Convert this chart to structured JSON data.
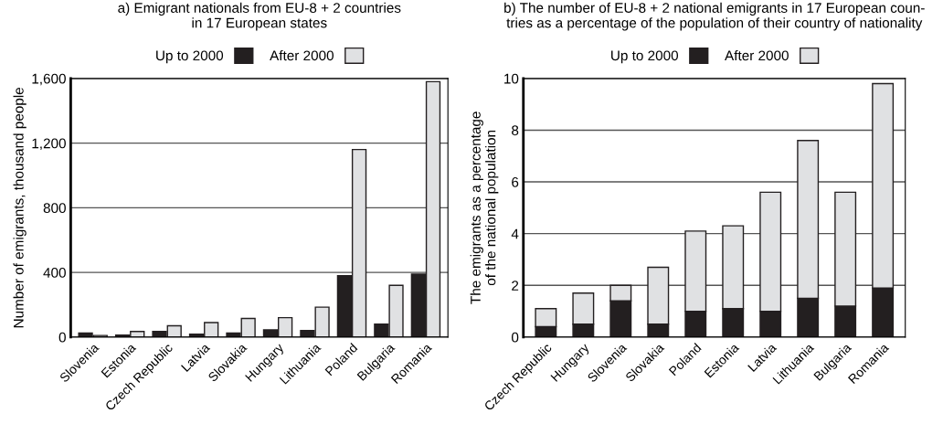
{
  "chart_data": [
    {
      "type": "bar",
      "title": "a) Emigrant nationals from EU-8 + 2 countries\nin 17 European states",
      "ylabel": "Number of emigrants, thousand people",
      "categories": [
        "Slovenia",
        "Estonia",
        "Czech Republic",
        "Latvia",
        "Slovakia",
        "Hungary",
        "Lithuania",
        "Poland",
        "Bulgaria",
        "Romania"
      ],
      "series": [
        {
          "name": "Up to 2000",
          "color": "#231f20",
          "values": [
            25,
            12,
            35,
            18,
            25,
            45,
            40,
            380,
            80,
            390
          ]
        },
        {
          "name": "After 2000",
          "color": "#e0e1e3",
          "values": [
            10,
            35,
            70,
            90,
            115,
            120,
            185,
            1160,
            320,
            1580
          ]
        }
      ],
      "ylim": [
        0,
        1600
      ],
      "yticks": [
        0,
        400,
        800,
        {
          "value": 1200,
          "label": "1,200"
        },
        {
          "value": 1600,
          "label": "1,600"
        }
      ],
      "grid": "y",
      "legend": "top"
    },
    {
      "type": "bar",
      "stacked": true,
      "title": "b) The number of EU-8 + 2 national emigrants in 17 European coun-\ntries as a percentage of the population of their country of nationality",
      "ylabel": "The emigrants as a percentage\nof the national population",
      "categories": [
        "Czech Republic",
        "Hungary",
        "Slovenia",
        "Slovakia",
        "Poland",
        "Estonia",
        "Latvia",
        "Lithuania",
        "Bulgaria",
        "Romania"
      ],
      "series": [
        {
          "name": "Up to 2000",
          "color": "#231f20",
          "values": [
            0.4,
            0.5,
            1.4,
            0.5,
            1.0,
            1.1,
            1.0,
            1.5,
            1.2,
            1.9
          ]
        },
        {
          "name": "After 2000",
          "color": "#e0e1e3",
          "values": [
            0.7,
            1.2,
            0.6,
            2.2,
            3.1,
            3.2,
            4.6,
            6.1,
            4.4,
            7.9
          ]
        }
      ],
      "ylim": [
        0,
        10
      ],
      "yticks": [
        0,
        2,
        4,
        6,
        8,
        10
      ],
      "grid": "y",
      "legend": "top"
    }
  ]
}
